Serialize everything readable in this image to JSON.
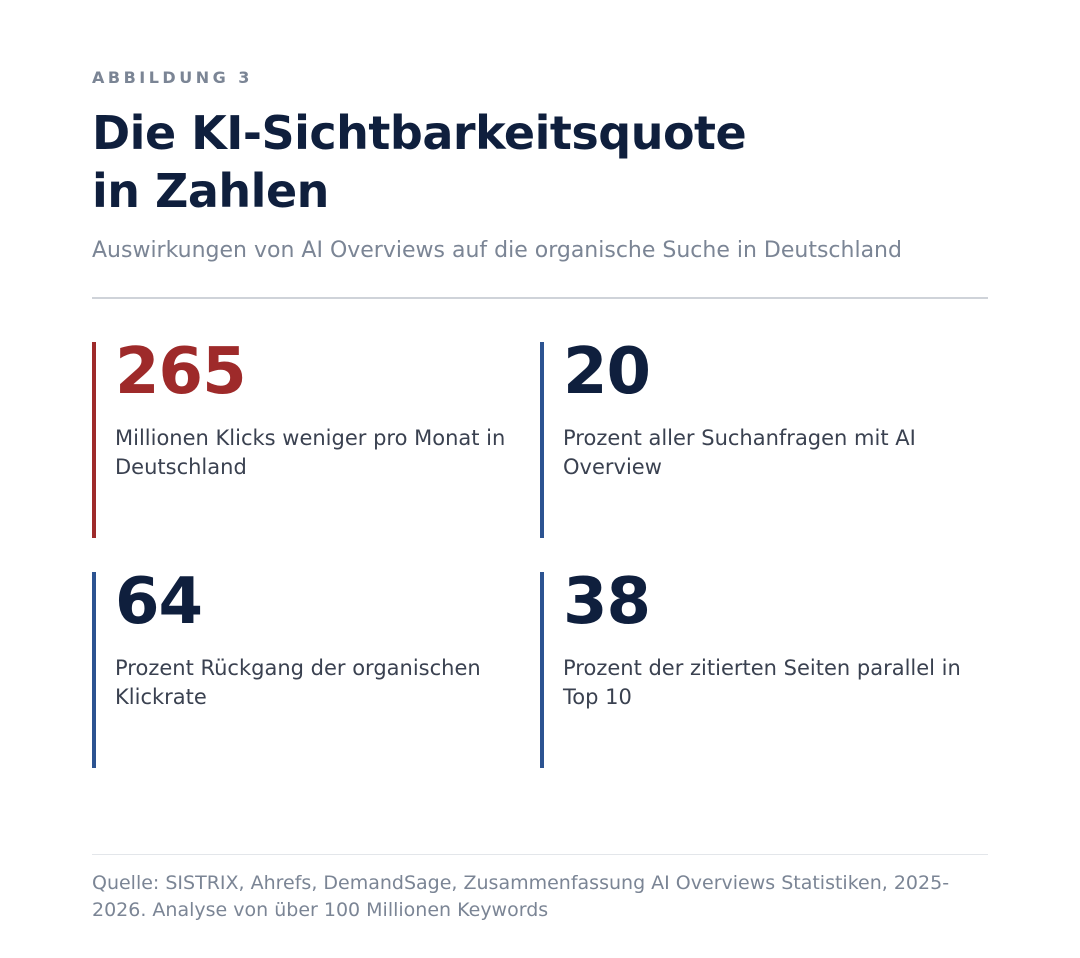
{
  "header": {
    "eyebrow": "ABBILDUNG 3",
    "title_line1": "Die KI-Sichtbarkeitsquote",
    "title_line2": "in Zahlen",
    "subtitle": "Auswirkungen von AI Overviews auf die organische Suche in Deutschland"
  },
  "stats": [
    {
      "value": "265",
      "description": "Millionen Klicks weniger pro Monat in Deutschland",
      "accent": "#9e2a2a"
    },
    {
      "value": "20",
      "description": "Prozent aller Suchanfragen mit AI Overview",
      "accent": "#2c5391"
    },
    {
      "value": "64",
      "description": "Prozent Rückgang der organischen Klickrate",
      "accent": "#2c5391"
    },
    {
      "value": "38",
      "description": "Prozent der zitierten Seiten parallel in Top 10",
      "accent": "#2c5391"
    }
  ],
  "footer": {
    "source": "Quelle: SISTRIX, Ahrefs, DemandSage, Zusammenfassung AI Overviews Statistiken, 2025-2026. Analyse von über 100 Millionen Keywords"
  },
  "colors": {
    "navy": "#0f1f3d",
    "red": "#9e2a2a",
    "blue": "#2c5391",
    "muted": "#7b8595"
  }
}
